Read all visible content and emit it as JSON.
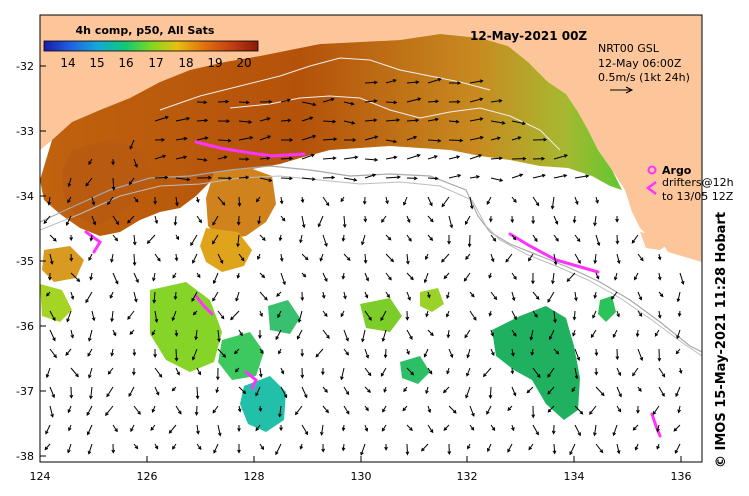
{
  "map": {
    "title": "12-May-2021 00Z",
    "legend": {
      "title": "4h comp, p50, All Sats",
      "ticks": [
        "14",
        "15",
        "16",
        "17",
        "18",
        "19",
        "20"
      ],
      "colors": [
        "#1a1aa8",
        "#1f5fe0",
        "#14a8d8",
        "#10c878",
        "#7ed820",
        "#e8c010",
        "#e07010",
        "#c03e10",
        "#8a1a08"
      ]
    },
    "info": {
      "line1": "NRT00 GSL",
      "line2": "12-May 06:00Z",
      "line3": "0.5m/s (1kt 24h)"
    },
    "argo": {
      "label": "Argo",
      "drifters_line1": "drifters@12h",
      "drifters_line2": "to 13/05 12Z"
    },
    "axes": {
      "y_labels": [
        "-32",
        "-33",
        "-34",
        "-35",
        "-36",
        "-37",
        "-38"
      ],
      "x_labels": [
        "124",
        "126",
        "128",
        "130",
        "132",
        "134",
        "136"
      ],
      "lon_range": [
        124,
        136.5
      ],
      "lat_range": [
        -38.1,
        -31.3
      ]
    },
    "credit": "© IMOS 15-May-2021 11:28 Hobart",
    "colors": {
      "land": "#fcc69a",
      "ocean": "#ffffff",
      "argo": "#ff33ff",
      "warm_sst": "#c8610e",
      "cool_sst": "#1aaa5a"
    }
  }
}
